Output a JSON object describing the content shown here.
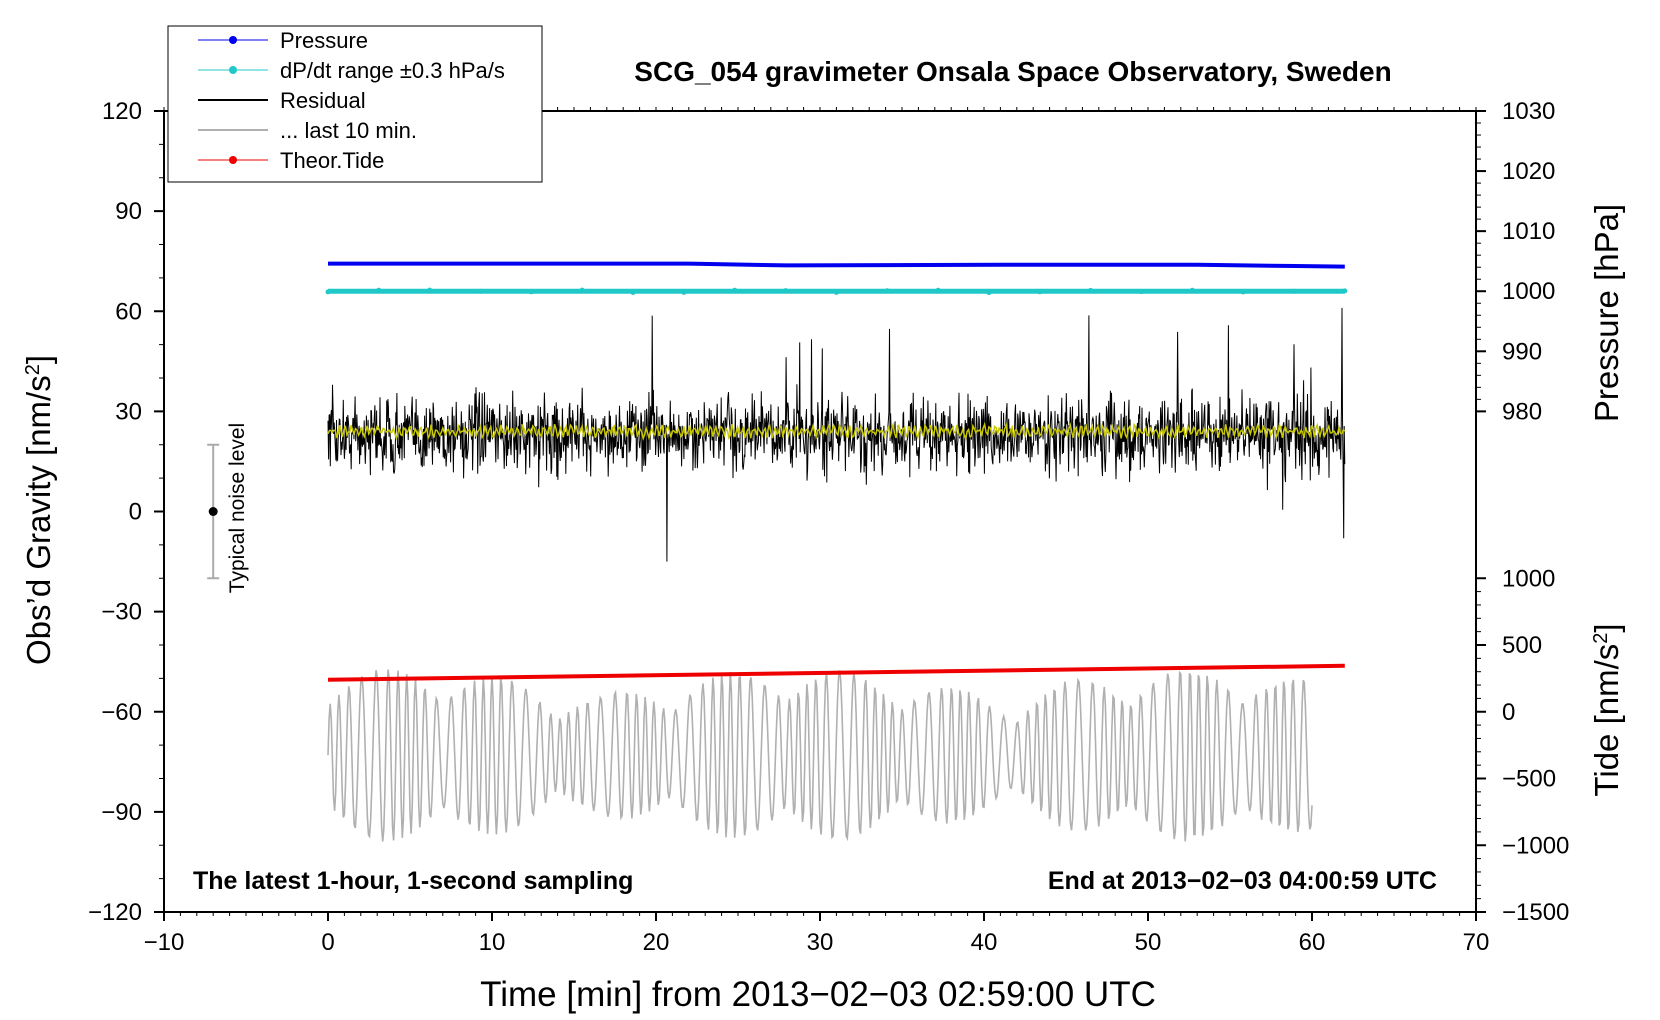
{
  "chart_data": {
    "type": "line",
    "title": "SCG_054 gravimeter Onsala Space Observatory, Sweden",
    "xlabel": "Time [min] from 2013−02−03 02:59:00 UTC",
    "ylabel": "Obs’d Gravity [nm/s",
    "ylabel_sup": "2",
    "ylabel_close": "]",
    "xlim": [
      -10,
      70
    ],
    "ylim": [
      -120,
      120
    ],
    "x_ticks": [
      -10,
      0,
      10,
      20,
      30,
      40,
      50,
      60,
      70
    ],
    "x_tick_labels": [
      "−10",
      "0",
      "10",
      "20",
      "30",
      "40",
      "50",
      "60",
      "70"
    ],
    "y_ticks": [
      120,
      90,
      60,
      30,
      0,
      -30,
      -60,
      -90,
      -120
    ],
    "y_tick_labels": [
      "120",
      "90",
      "60",
      "30",
      "0",
      "−30",
      "−60",
      "−90",
      "−120"
    ],
    "pressure_axis": {
      "label": "Pressure [hPa]",
      "range": [
        980,
        1030
      ],
      "ticks": [
        1030,
        1020,
        1010,
        1000,
        990,
        980
      ],
      "tick_labels": [
        "1030",
        "1020",
        "1010",
        "1000",
        "990",
        "980"
      ]
    },
    "tide_axis": {
      "label": "Tide [nm/s",
      "label_sup": "2",
      "label_close": "]",
      "range": [
        -1500,
        1000
      ],
      "ticks": [
        1000,
        500,
        0,
        -500,
        -1000,
        -1500
      ],
      "tick_labels": [
        "1000",
        "500",
        "0",
        "−500",
        "−1000",
        "−1500"
      ]
    },
    "grid": false,
    "legend_position": "top-left",
    "legend": [
      {
        "label": "Pressure",
        "color": "#0000ee",
        "style": "line-dot"
      },
      {
        "label": "dP/dt range ±0.3 hPa/s",
        "color": "#20c8c8",
        "style": "line-dot"
      },
      {
        "label": "Residual",
        "color": "#000000",
        "style": "line"
      },
      {
        "label": "... last 10 min.",
        "color": "#b0b0b0",
        "style": "line"
      },
      {
        "label": "Theor.Tide",
        "color": "#ee0000",
        "style": "line-dot"
      }
    ],
    "series": [
      {
        "name": "Pressure",
        "color": "#0000ee",
        "x": [
          0,
          22,
          28,
          41,
          53,
          59,
          62
        ],
        "y": [
          68.9,
          68.9,
          68.4,
          68.6,
          68.5,
          68.3,
          68.1
        ],
        "y_hpa": [
          1004.6,
          1004.6,
          1004.3,
          1004.4,
          1004.4,
          1004.2,
          1004.1
        ]
      },
      {
        "name": "dP/dt range ±0.3 hPa/s",
        "color": "#20c8c8",
        "x": [
          0,
          62
        ],
        "y": [
          60,
          60
        ],
        "y_hpa": [
          1000,
          1000
        ]
      },
      {
        "name": "Residual",
        "color": "#000000",
        "x_range": [
          0,
          62
        ],
        "center": 23,
        "typical_min": 8,
        "typical_max": 40,
        "extreme_min": -15,
        "extreme_max": 61
      },
      {
        "name": "",
        "color": "#c8c800",
        "x_range": [
          0,
          62
        ],
        "center": 24
      },
      {
        "name": "... last 10 min.",
        "color": "#b0b0b0",
        "x_range": [
          0,
          60
        ],
        "center": -73,
        "min": -106,
        "max": -38
      },
      {
        "name": "Theor.Tide",
        "color": "#ee0000",
        "x": [
          0,
          62
        ],
        "y": [
          -53,
          -50.5
        ],
        "y_tide": [
          240,
          344
        ]
      }
    ],
    "annotations": {
      "noise_label": "Typical noise level",
      "noise_x": -7,
      "noise_center": 0,
      "noise_half_range": 20,
      "bottom_left": "The latest 1-hour, 1-second sampling",
      "bottom_right": "End at 2013−02−03 04:00:59 UTC"
    }
  }
}
